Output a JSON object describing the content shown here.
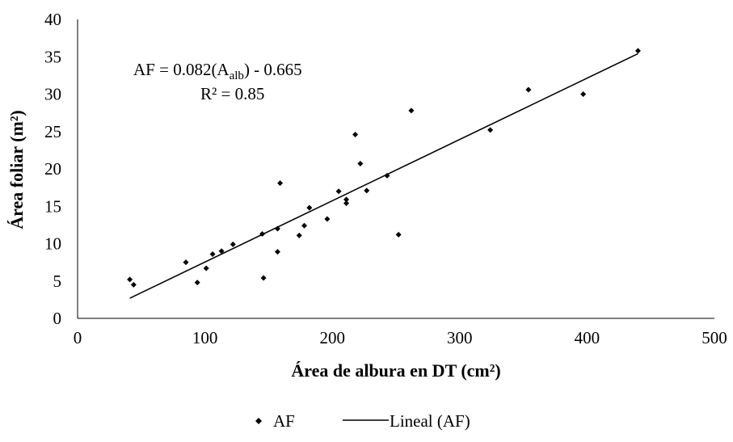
{
  "chart_data": {
    "type": "scatter",
    "xlabel": "Área de albura en DT (cm²)",
    "ylabel": "Área foliar (m²)",
    "xlim": [
      0,
      500
    ],
    "ylim": [
      0,
      40
    ],
    "xticks": [
      "0",
      "100",
      "200",
      "300",
      "400",
      "500"
    ],
    "yticks": [
      "0",
      "5",
      "10",
      "15",
      "20",
      "25",
      "30",
      "35",
      "40"
    ],
    "grid": false,
    "legend_position": "bottom",
    "series": [
      {
        "name": "AF",
        "marker": "diamond",
        "color": "#000000",
        "points": [
          {
            "x": 41,
            "y": 5.2
          },
          {
            "x": 44,
            "y": 4.5
          },
          {
            "x": 85,
            "y": 7.5
          },
          {
            "x": 94,
            "y": 4.8
          },
          {
            "x": 101,
            "y": 6.7
          },
          {
            "x": 106,
            "y": 8.6
          },
          {
            "x": 113,
            "y": 9.0
          },
          {
            "x": 122,
            "y": 9.9
          },
          {
            "x": 145,
            "y": 11.3
          },
          {
            "x": 146,
            "y": 5.4
          },
          {
            "x": 157,
            "y": 12.0
          },
          {
            "x": 157,
            "y": 8.9
          },
          {
            "x": 159,
            "y": 18.1
          },
          {
            "x": 174,
            "y": 11.1
          },
          {
            "x": 178,
            "y": 12.4
          },
          {
            "x": 182,
            "y": 14.8
          },
          {
            "x": 196,
            "y": 13.3
          },
          {
            "x": 205,
            "y": 17.0
          },
          {
            "x": 211,
            "y": 15.9
          },
          {
            "x": 211,
            "y": 15.4
          },
          {
            "x": 218,
            "y": 24.6
          },
          {
            "x": 222,
            "y": 20.7
          },
          {
            "x": 227,
            "y": 17.1
          },
          {
            "x": 243,
            "y": 19.1
          },
          {
            "x": 252,
            "y": 11.2
          },
          {
            "x": 262,
            "y": 27.8
          },
          {
            "x": 324,
            "y": 25.2
          },
          {
            "x": 354,
            "y": 30.6
          },
          {
            "x": 397,
            "y": 30.0
          },
          {
            "x": 440,
            "y": 35.8
          }
        ]
      },
      {
        "name": "Lineal (AF)",
        "kind": "trendline",
        "color": "#000000",
        "slope": 0.082,
        "intercept": -0.665,
        "x_range": [
          41,
          440
        ]
      }
    ],
    "annotation": {
      "line1_prefix": "AF = 0.082(A",
      "line1_sub": "alb",
      "line1_suffix": ") - 0.665",
      "line2": "R² = 0.85"
    }
  }
}
